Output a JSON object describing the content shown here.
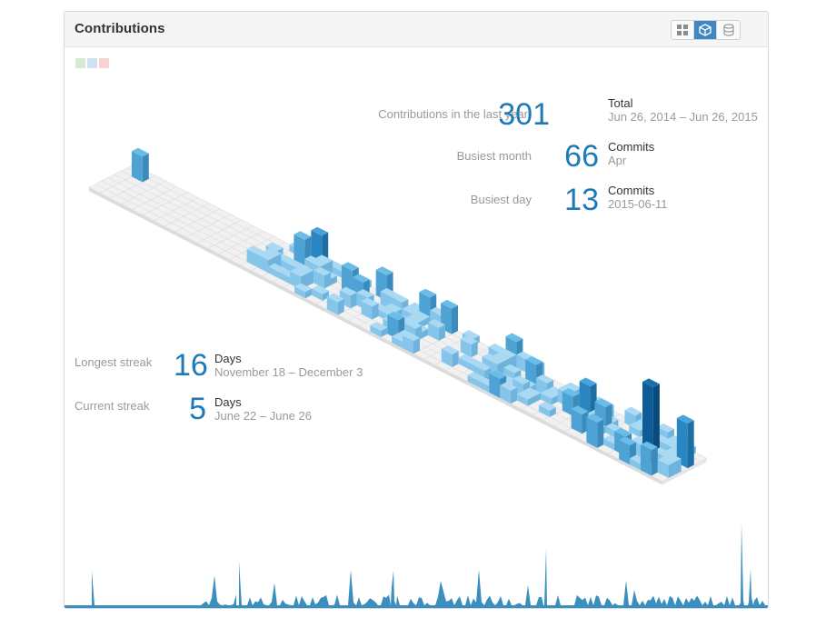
{
  "panel": {
    "title": "Contributions",
    "view_toggle": [
      {
        "icon": "grid-icon",
        "active": false
      },
      {
        "icon": "cube-icon",
        "active": true
      },
      {
        "icon": "database-icon",
        "active": false
      }
    ]
  },
  "legend_swatch_colors": [
    "#d6ead0",
    "#cfe2f3",
    "#f6d2d2"
  ],
  "stats": {
    "total": {
      "label": "Contributions in the last year",
      "value": "301",
      "unit": "Total",
      "sub": "Jun 26, 2014 – Jun 26, 2015"
    },
    "busiest_month": {
      "label": "Busiest month",
      "value": "66",
      "unit": "Commits",
      "sub": "Apr"
    },
    "busiest_day": {
      "label": "Busiest day",
      "value": "13",
      "unit": "Commits",
      "sub": "2015-06-11"
    },
    "longest_streak": {
      "label": "Longest streak",
      "value": "16",
      "unit": "Days",
      "sub": "November 18 – December 3"
    },
    "current_streak": {
      "label": "Current streak",
      "value": "5",
      "unit": "Days",
      "sub": "June 22 – June 26"
    }
  },
  "colors": {
    "accent": "#1d7ab8",
    "sparkline_fill": "#3a8fbf",
    "grid_top": "#f1f1f1",
    "grid_side": "#dcdcdc",
    "bar_light": "#a8d6f0",
    "bar_dark": "#0d5c97"
  }
}
